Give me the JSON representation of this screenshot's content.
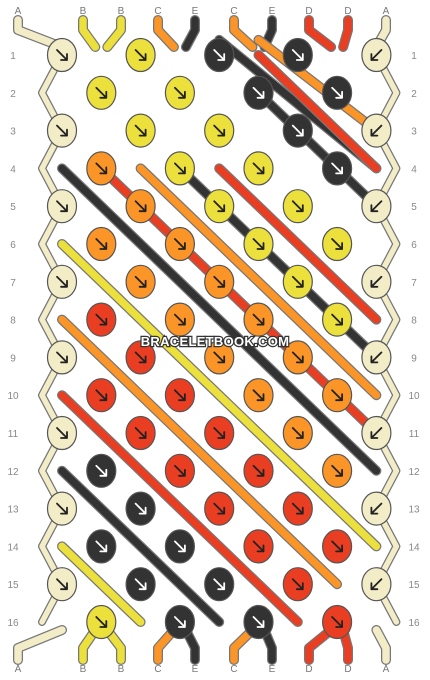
{
  "watermark": "BRACELETBOOK.COM",
  "colors": {
    "A": "#f2ecc7",
    "B": "#ece03c",
    "C": "#fb9527",
    "D": "#ea3e23",
    "E": "#333333"
  },
  "top_strands": [
    "A",
    "B",
    "B",
    "C",
    "E",
    "C",
    "E",
    "D",
    "D",
    "A"
  ],
  "bottom_strands": [
    "A",
    "B",
    "B",
    "C",
    "E",
    "C",
    "E",
    "D",
    "D",
    "A"
  ],
  "row_labels": [
    "1",
    "2",
    "3",
    "4",
    "5",
    "6",
    "7",
    "8",
    "9",
    "10",
    "11",
    "12",
    "13",
    "14",
    "15",
    "16"
  ],
  "knots": [
    [
      "A",
      "B",
      "E",
      "E",
      "A"
    ],
    [
      "B",
      "B",
      "E",
      "E"
    ],
    [
      "A",
      "B",
      "B",
      "E",
      "A"
    ],
    [
      "C",
      "B",
      "B",
      "E"
    ],
    [
      "A",
      "C",
      "B",
      "B",
      "A"
    ],
    [
      "C",
      "C",
      "B",
      "B"
    ],
    [
      "A",
      "C",
      "C",
      "B",
      "A"
    ],
    [
      "D",
      "C",
      "C",
      "B"
    ],
    [
      "A",
      "D",
      "C",
      "C",
      "A"
    ],
    [
      "D",
      "D",
      "C",
      "C"
    ],
    [
      "A",
      "D",
      "D",
      "C",
      "A"
    ],
    [
      "E",
      "D",
      "D",
      "C"
    ],
    [
      "A",
      "E",
      "D",
      "D",
      "A"
    ],
    [
      "E",
      "E",
      "D",
      "D"
    ],
    [
      "A",
      "E",
      "E",
      "D",
      "A"
    ],
    [
      "B",
      "E",
      "E",
      "D"
    ]
  ],
  "knot_direction": [
    [
      "fwd",
      "fwd",
      "fwd",
      "fwd",
      "back"
    ],
    [
      "fwd",
      "fwd",
      "fwd",
      "fwd"
    ],
    [
      "fwd",
      "fwd",
      "fwd",
      "fwd",
      "back"
    ],
    [
      "fwd",
      "fwd",
      "fwd",
      "fwd"
    ],
    [
      "fwd",
      "fwd",
      "fwd",
      "fwd",
      "back"
    ],
    [
      "fwd",
      "fwd",
      "fwd",
      "fwd"
    ],
    [
      "fwd",
      "fwd",
      "fwd",
      "fwd",
      "back"
    ],
    [
      "fwd",
      "fwd",
      "fwd",
      "fwd"
    ],
    [
      "fwd",
      "fwd",
      "fwd",
      "fwd",
      "back"
    ],
    [
      "fwd",
      "fwd",
      "fwd",
      "fwd"
    ],
    [
      "fwd",
      "fwd",
      "fwd",
      "fwd",
      "back"
    ],
    [
      "fwd",
      "fwd",
      "fwd",
      "fwd"
    ],
    [
      "fwd",
      "fwd",
      "fwd",
      "fwd",
      "back"
    ],
    [
      "fwd",
      "fwd",
      "fwd",
      "fwd"
    ],
    [
      "fwd",
      "fwd",
      "fwd",
      "fwd",
      "back"
    ],
    [
      "fwd",
      "fwd",
      "fwd",
      "fwd"
    ]
  ],
  "diagonal_lines": [
    {
      "color": "E",
      "from": [
        5,
        0
      ],
      "to": [
        9,
        4
      ]
    },
    {
      "color": "C",
      "from": [
        6,
        0
      ],
      "to": [
        9,
        3
      ]
    },
    {
      "color": "D",
      "from": [
        6,
        1
      ],
      "to": [
        9,
        4
      ]
    },
    {
      "color": "E",
      "from": [
        6,
        2
      ],
      "to": [
        9,
        5
      ]
    },
    {
      "color": "D",
      "from": [
        5,
        4
      ],
      "to": [
        9,
        8
      ]
    },
    {
      "color": "E",
      "from": [
        4,
        4
      ],
      "to": [
        9,
        9
      ]
    },
    {
      "color": "C",
      "from": [
        3,
        4
      ],
      "to": [
        9,
        10
      ]
    },
    {
      "color": "D",
      "from": [
        2,
        4
      ],
      "to": [
        9,
        11
      ]
    },
    {
      "color": "E",
      "from": [
        1,
        4
      ],
      "to": [
        9,
        12
      ]
    },
    {
      "color": "B",
      "from": [
        1,
        6
      ],
      "to": [
        9,
        14
      ]
    },
    {
      "color": "C",
      "from": [
        1,
        8
      ],
      "to": [
        8,
        15
      ]
    },
    {
      "color": "D",
      "from": [
        1,
        10
      ],
      "to": [
        7,
        16
      ]
    },
    {
      "color": "E",
      "from": [
        1,
        12
      ],
      "to": [
        5,
        16
      ]
    },
    {
      "color": "B",
      "from": [
        1,
        14
      ],
      "to": [
        3,
        16
      ]
    }
  ]
}
